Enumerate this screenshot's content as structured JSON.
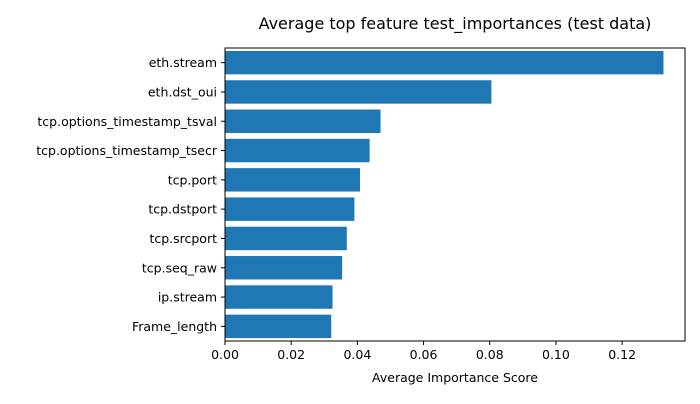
{
  "chart_data": {
    "type": "bar",
    "orientation": "horizontal",
    "title": "Average top feature test_importances (test data)",
    "xlabel": "Average Importance Score",
    "ylabel": "",
    "xlim": [
      0,
      0.139
    ],
    "xticks": [
      0.0,
      0.02,
      0.04,
      0.06,
      0.08,
      0.1,
      0.12
    ],
    "xtick_labels": [
      "0.00",
      "0.02",
      "0.04",
      "0.06",
      "0.08",
      "0.10",
      "0.12"
    ],
    "grid": false,
    "legend": "none",
    "bar_color": "#1f77b4",
    "categories": [
      "eth.stream",
      "eth.dst_oui",
      "tcp.options_timestamp_tsval",
      "tcp.options_timestamp_tsecr",
      "tcp.port",
      "tcp.dstport",
      "tcp.srcport",
      "tcp.seq_raw",
      "ip.stream",
      "Frame_length"
    ],
    "values": [
      0.1325,
      0.0805,
      0.047,
      0.0437,
      0.0408,
      0.0391,
      0.0368,
      0.0354,
      0.0325,
      0.0321
    ]
  }
}
